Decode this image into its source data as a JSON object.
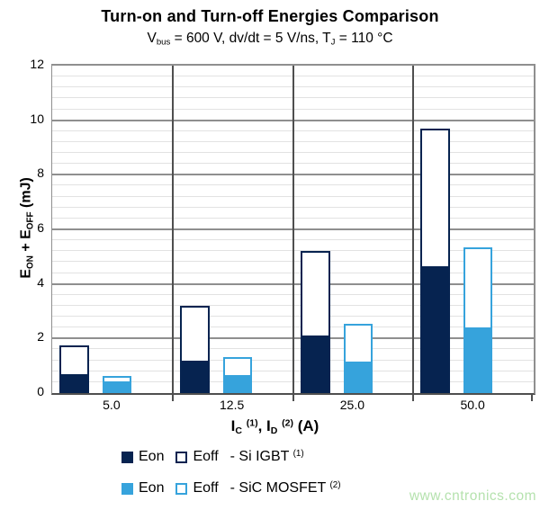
{
  "chart_data": {
    "type": "bar",
    "stacked": true,
    "title": "Turn-on and Turn-off Energies Comparison",
    "subtitle": "Vbus = 600 V, dv/dt = 5 V/ns, TJ = 110 °C",
    "xlabel": "IC (1), ID (2) (A)",
    "ylabel": "EON + EOFF (mJ)",
    "categories": [
      "5.0",
      "12.5",
      "25.0",
      "50.0"
    ],
    "series": [
      {
        "name": "Si IGBT Eon",
        "style": "filled",
        "color": "#062350",
        "values": [
          0.7,
          1.2,
          2.1,
          4.65
        ]
      },
      {
        "name": "Si IGBT Eoff",
        "style": "outline",
        "color": "#062350",
        "values": [
          1.05,
          2.0,
          3.1,
          5.05
        ]
      },
      {
        "name": "SiC MOSFET Eon",
        "style": "filled",
        "color": "#36a3dc",
        "values": [
          0.42,
          0.65,
          1.15,
          2.4
        ]
      },
      {
        "name": "SiC MOSFET Eoff",
        "style": "outline",
        "color": "#36a3dc",
        "values": [
          0.2,
          0.67,
          1.4,
          2.95
        ]
      }
    ],
    "stack_totals": {
      "si_igbt": [
        1.75,
        3.2,
        5.2,
        9.7
      ],
      "sic_mosfet": [
        0.62,
        1.32,
        2.55,
        5.35
      ]
    },
    "ylim": [
      0,
      12
    ],
    "ytick_step": 2,
    "yminor_step": 0.4,
    "ytick_labels": [
      "0",
      "2",
      "4",
      "6",
      "8",
      "10",
      "12"
    ],
    "grid": "major-and-minor-horizontal",
    "legend_position": "bottom"
  },
  "subtitle_rich": [
    {
      "t": "V"
    },
    {
      "t": "bus",
      "style": "sub"
    },
    {
      "t": " = 600 V, dv/dt = 5 V/ns, T"
    },
    {
      "t": "J",
      "style": "sub"
    },
    {
      "t": " = 110 °C"
    }
  ],
  "ylabel_rich": [
    {
      "t": "E"
    },
    {
      "t": "ON",
      "style": "sub"
    },
    {
      "t": " + E"
    },
    {
      "t": "OFF",
      "style": "sub"
    },
    {
      "t": " (mJ)"
    }
  ],
  "xlabel_rich": [
    {
      "t": "I"
    },
    {
      "t": "C",
      "style": "sub"
    },
    {
      "t": " "
    },
    {
      "t": "(1)",
      "style": "sup"
    },
    {
      "t": ", I"
    },
    {
      "t": "D",
      "style": "sub"
    },
    {
      "t": " "
    },
    {
      "t": "(2)",
      "style": "sup"
    },
    {
      "t": " (A)"
    }
  ],
  "legend": {
    "rows": [
      {
        "eon_label": "Eon",
        "eoff_label": "Eoff",
        "device_rich": [
          {
            "t": "- Si IGBT "
          },
          {
            "t": "(1)",
            "style": "sup"
          }
        ],
        "color": "#062350"
      },
      {
        "eon_label": "Eon",
        "eoff_label": "Eoff",
        "device_rich": [
          {
            "t": "- SiC MOSFET "
          },
          {
            "t": "(2)",
            "style": "sup"
          }
        ],
        "color": "#36a3dc"
      }
    ]
  },
  "watermark": "www.cntronics.com",
  "colors": {
    "igbt_navy": "#062350",
    "sic_blue": "#36a3dc",
    "grid_major": "#8f8f8f",
    "grid_minor": "#e2e2e2",
    "separator": "#4f4f4f",
    "watermark_green": "#b5e2ae"
  }
}
